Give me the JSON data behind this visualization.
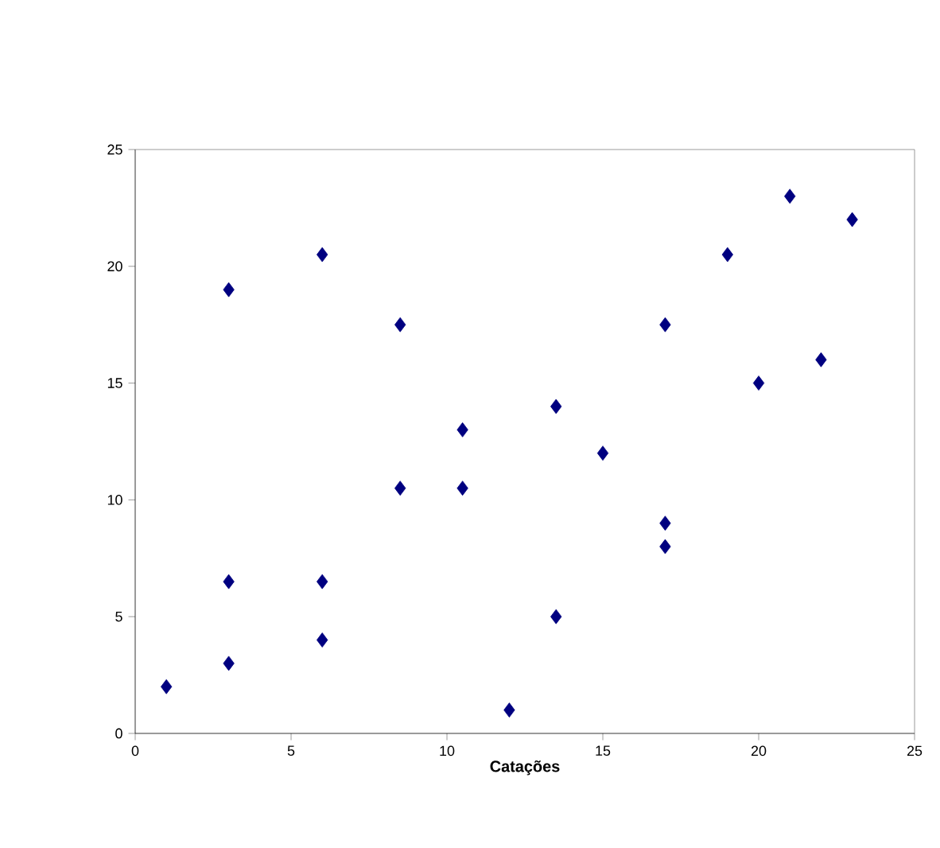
{
  "chart_data": {
    "type": "scatter",
    "xlabel": "Catações",
    "x": [
      1,
      3,
      3,
      3,
      6,
      6,
      6,
      8.5,
      8.5,
      10.5,
      10.5,
      12,
      13.5,
      13.5,
      15,
      17,
      17,
      17,
      19,
      20,
      21,
      22,
      23
    ],
    "values": [
      2,
      3,
      6.5,
      19,
      4,
      6.5,
      20.5,
      10.5,
      17.5,
      10.5,
      13,
      1,
      5,
      14,
      12,
      8,
      9,
      17.5,
      20.5,
      15,
      23,
      16,
      22
    ],
    "color": "#000080",
    "marker": "diamond",
    "xlim": [
      0,
      25
    ],
    "ylim": [
      0,
      25
    ],
    "xticks": [
      0,
      5,
      10,
      15,
      20,
      25
    ],
    "yticks": [
      0,
      5,
      10,
      15,
      20,
      25
    ],
    "grid": false
  }
}
